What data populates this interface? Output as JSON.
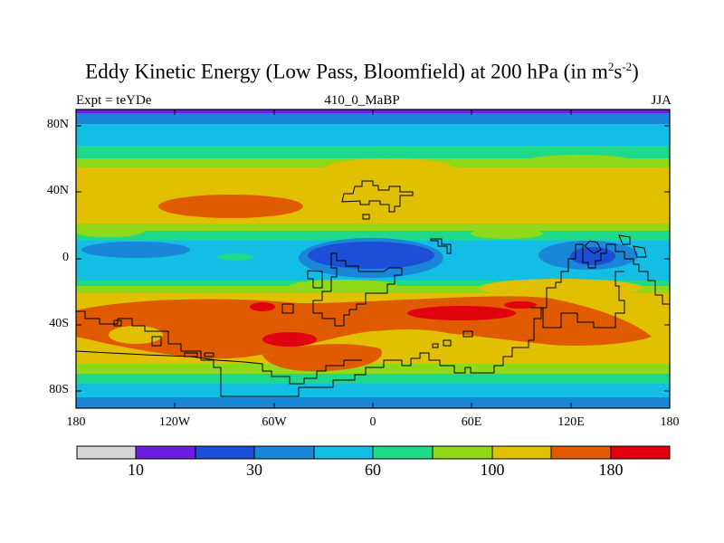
{
  "title": {
    "main": "Eddy Kinetic Energy (Low Pass, Bloomfield) at 200 hPa (in m",
    "sup1": "2",
    "s": "s",
    "sup2": "-2",
    "close": ")"
  },
  "subtitle": {
    "left": "Expt = teYDe",
    "center": "410_0_MaBP",
    "right": "JJA"
  },
  "map": {
    "lat_range": [
      -90,
      90
    ],
    "lon_range": [
      -180,
      180
    ],
    "lat_ticks": [
      "80N",
      "40N",
      "0",
      "40S",
      "80S"
    ],
    "lon_ticks": [
      "180",
      "120W",
      "60W",
      "0",
      "60E",
      "120E",
      "180"
    ]
  },
  "colorbar": {
    "colors": [
      "#d6d6d6",
      "#6a1ee0",
      "#1d4fd6",
      "#1a86d8",
      "#13bde3",
      "#1ed98a",
      "#8fd81a",
      "#e0c000",
      "#e05a00",
      "#e00010"
    ],
    "labels": [
      "10",
      "30",
      "60",
      "100",
      "180"
    ]
  }
}
